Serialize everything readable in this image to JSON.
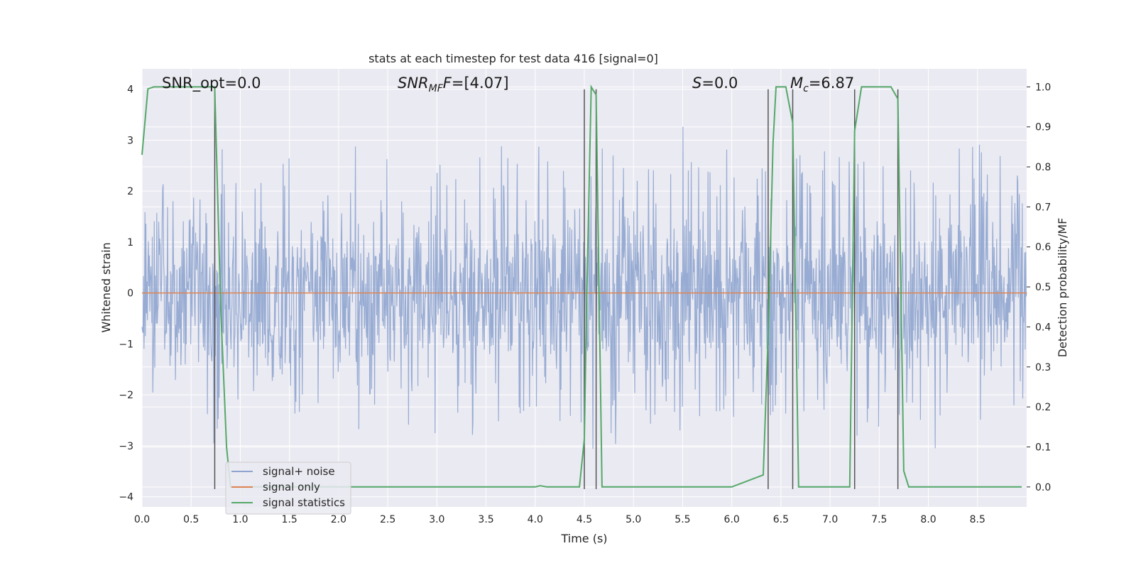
{
  "chart_data": {
    "type": "line",
    "title": "stats at each timestep for test data 416 [signal=0]",
    "xlabel": "Time (s)",
    "ylabel": "Whitened strain",
    "ylabel_right": "Detection probability/MF",
    "xlim": [
      0.0,
      9.0
    ],
    "ylim": [
      -4.2,
      4.4
    ],
    "ylim_right": [
      -0.05,
      1.045
    ],
    "xticks": [
      "0.0",
      "0.5",
      "1.0",
      "1.5",
      "2.0",
      "2.5",
      "3.0",
      "3.5",
      "4.0",
      "4.5",
      "5.0",
      "5.5",
      "6.0",
      "6.5",
      "7.0",
      "7.5",
      "8.0",
      "8.5"
    ],
    "yticks": [
      "4",
      "3",
      "2",
      "1",
      "0",
      "−1",
      "−2",
      "−3",
      "−4"
    ],
    "yticks_right": [
      "1.0",
      "0.9",
      "0.8",
      "0.7",
      "0.6",
      "0.5",
      "0.4",
      "0.3",
      "0.2",
      "0.1",
      "0.0"
    ],
    "grid": true,
    "legend_position": "lower-left",
    "annotations": [
      {
        "label": "SNR_opt=0.0",
        "x": 0.2
      },
      {
        "label_parts": [
          "SNR",
          "MF",
          "=[4.07]"
        ],
        "x": 2.6
      },
      {
        "label_parts": [
          "S",
          "",
          "=0.0"
        ],
        "x": 5.6
      },
      {
        "label_parts": [
          "M",
          "c",
          "=6.87"
        ],
        "x": 6.6
      }
    ],
    "vertical_lines_x": [
      0.74,
      4.5,
      4.62,
      6.37,
      6.62,
      7.25,
      7.69
    ],
    "vertical_lines_y": [
      -3.85,
      4.0
    ],
    "series": [
      {
        "name": "signal+ noise",
        "color": "#8fa5cf",
        "axis": "left",
        "description_values": "whitened strain noise, range approx -3.5 to 4.0",
        "envelope_upper": [
          1.6,
          2.2,
          2.5,
          2.0,
          3.0,
          2.6,
          2.2,
          3.3,
          2.5,
          2.8,
          2.7,
          3.2,
          2.8,
          2.5,
          2.2,
          2.6,
          2.4,
          2.9,
          3.1,
          2.7,
          3.3,
          2.6,
          2.4,
          2.9,
          3.0,
          2.6,
          2.8,
          3.1,
          3.3,
          2.9,
          3.0,
          2.5,
          2.6,
          3.2,
          3.0,
          2.8,
          2.7,
          3.1,
          3.3,
          3.0,
          2.6,
          2.9,
          3.2,
          3.0,
          2.8,
          2.4
        ],
        "envelope_lower": [
          -2.2,
          -2.4,
          -2.5,
          -3.1,
          -2.6,
          -2.3,
          -2.2,
          -2.5,
          -2.7,
          -2.6,
          -3.0,
          -2.8,
          -2.3,
          -2.6,
          -3.0,
          -3.4,
          -2.5,
          -2.9,
          -2.6,
          -2.6,
          -2.7,
          -2.6,
          -2.7,
          -3.1,
          -3.0,
          -2.4,
          -2.6,
          -2.8,
          -3.0,
          -2.6,
          -2.9,
          -2.8,
          -2.4,
          -3.0,
          -3.3,
          -2.7,
          -2.5,
          -2.9,
          -2.8,
          -2.5,
          -2.7,
          -3.3,
          -2.6,
          -2.8,
          -2.6,
          -2.3
        ]
      },
      {
        "name": "signal only",
        "color": "#dd8452",
        "axis": "left",
        "x": [
          0.0,
          9.0
        ],
        "y": [
          0.0,
          0.0
        ]
      },
      {
        "name": "signal statistics",
        "color": "#55a868",
        "axis": "right",
        "x": [
          0.0,
          0.06,
          0.12,
          0.2,
          0.3,
          0.4,
          0.5,
          0.6,
          0.68,
          0.74,
          0.8,
          0.86,
          0.9,
          0.95,
          1.0,
          2.0,
          3.0,
          4.0,
          4.05,
          4.12,
          4.3,
          4.45,
          4.5,
          4.52,
          4.57,
          4.62,
          4.68,
          4.8,
          5.0,
          5.5,
          6.0,
          6.32,
          6.37,
          6.42,
          6.45,
          6.55,
          6.62,
          6.68,
          6.75,
          7.0,
          7.2,
          7.25,
          7.32,
          7.45,
          7.62,
          7.69,
          7.75,
          7.8,
          8.0,
          8.5,
          8.95
        ],
        "y": [
          0.83,
          0.995,
          1.0,
          1.0,
          1.0,
          1.0,
          1.0,
          1.0,
          1.0,
          1.0,
          0.45,
          0.1,
          0.0,
          0.0,
          0.0,
          0.0,
          0.0,
          0.0,
          0.003,
          0.0,
          0.0,
          0.0,
          0.12,
          0.42,
          1.0,
          0.98,
          0.0,
          0.0,
          0.0,
          0.0,
          0.0,
          0.03,
          0.38,
          0.86,
          1.0,
          1.0,
          0.91,
          0.0,
          0.0,
          0.0,
          0.0,
          0.89,
          1.0,
          1.0,
          1.0,
          0.97,
          0.04,
          0.0,
          0.0,
          0.0,
          0.0
        ]
      }
    ]
  },
  "legend": {
    "items": [
      {
        "label": "signal+ noise",
        "color": "#8fa5cf"
      },
      {
        "label": "signal only",
        "color": "#dd8452"
      },
      {
        "label": "signal statistics",
        "color": "#55a868"
      }
    ]
  },
  "style": {
    "plot_background": "#eaeaf2",
    "grid_color": "#ffffff"
  }
}
